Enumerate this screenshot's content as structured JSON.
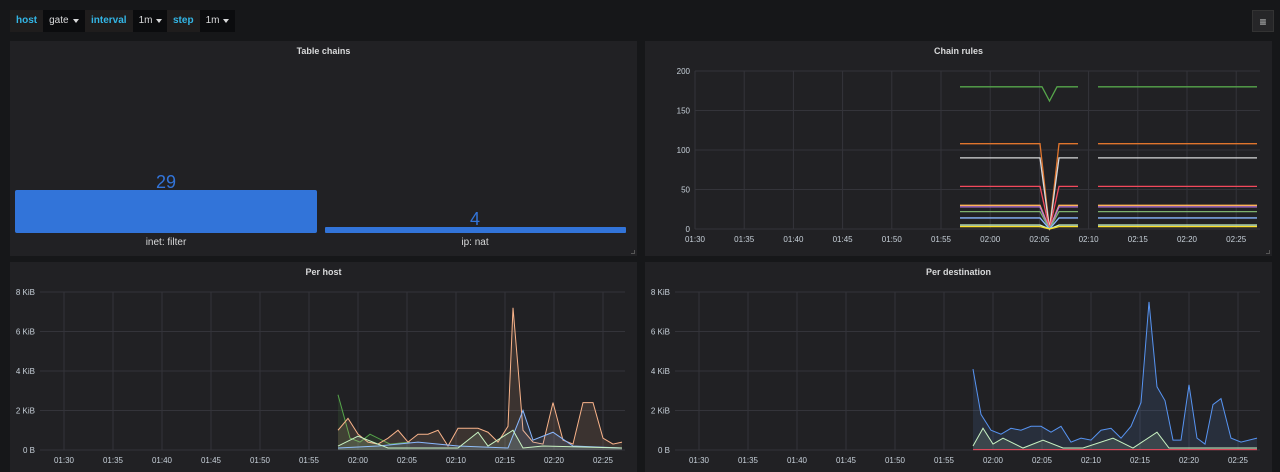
{
  "toolbar": {
    "variables": [
      {
        "label": "host",
        "value": "gate"
      },
      {
        "label": "interval",
        "value": "1m"
      },
      {
        "label": "step",
        "value": "1m"
      }
    ],
    "menu_icon": "hamburger-icon"
  },
  "panels": {
    "table_chains": {
      "title": "Table chains",
      "bars": [
        {
          "label": "inet: filter",
          "value": "29"
        },
        {
          "label": "ip: nat",
          "value": "4"
        }
      ]
    },
    "chain_rules": {
      "title": "Chain rules",
      "y_ticks": [
        "200",
        "150",
        "100",
        "50",
        "0"
      ],
      "x_ticks": [
        "01:30",
        "01:35",
        "01:40",
        "01:45",
        "01:50",
        "01:55",
        "02:00",
        "02:05",
        "02:10",
        "02:15",
        "02:20",
        "02:25"
      ]
    },
    "per_host": {
      "title": "Per host",
      "y_ticks": [
        "8 KiB",
        "6 KiB",
        "4 KiB",
        "2 KiB",
        "0 B"
      ],
      "x_ticks": [
        "01:30",
        "01:35",
        "01:40",
        "01:45",
        "01:50",
        "01:55",
        "02:00",
        "02:05",
        "02:10",
        "02:15",
        "02:20",
        "02:25"
      ]
    },
    "per_destination": {
      "title": "Per destination",
      "y_ticks": [
        "8 KiB",
        "6 KiB",
        "4 KiB",
        "2 KiB",
        "0 B"
      ],
      "x_ticks": [
        "01:30",
        "01:35",
        "01:40",
        "01:45",
        "01:50",
        "01:55",
        "02:00",
        "02:05",
        "02:10",
        "02:15",
        "02:20",
        "02:25"
      ]
    }
  },
  "colors": {
    "bar": "#3274d9",
    "bar_text": "#3274d9",
    "background": "#161719",
    "panel": "#212124"
  },
  "chart_data": [
    {
      "type": "bar",
      "title": "Table chains",
      "categories": [
        "inet: filter",
        "ip: nat"
      ],
      "values": [
        29,
        4
      ]
    },
    {
      "type": "line",
      "title": "Chain rules",
      "ylim": [
        0,
        200
      ],
      "series_levels": [
        180,
        108,
        90,
        54,
        30,
        28,
        22,
        14,
        5,
        3
      ]
    },
    {
      "type": "area",
      "title": "Per host",
      "ylim": [
        0,
        8
      ],
      "yunit": "KiB"
    },
    {
      "type": "area",
      "title": "Per destination",
      "ylim": [
        0,
        8
      ],
      "yunit": "KiB"
    }
  ]
}
